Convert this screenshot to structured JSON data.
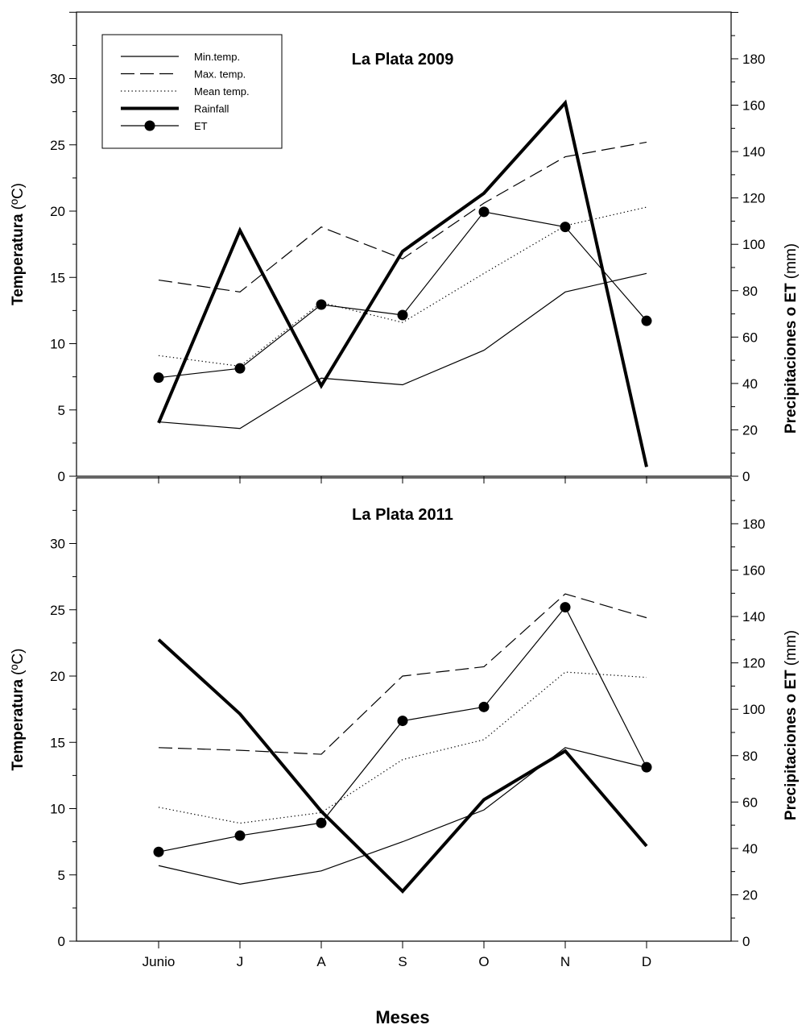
{
  "figure": {
    "xlabel": "Meses",
    "categories": [
      "Junio",
      "J",
      "A",
      "S",
      "O",
      "N",
      "D"
    ],
    "left_axis": {
      "label": "Temperatura",
      "unit": "(ºC)",
      "ylim": [
        0,
        35
      ],
      "ticks": [
        0,
        5,
        10,
        15,
        20,
        25,
        30
      ]
    },
    "right_axis": {
      "label": "Precipitaciones o ET",
      "unit": "(mm)",
      "ylim": [
        0,
        200
      ],
      "ticks": [
        0,
        20,
        40,
        60,
        80,
        100,
        120,
        140,
        160,
        180
      ]
    },
    "legend": {
      "placement": "top-left of upper panel",
      "entries": [
        {
          "label": "Min.temp.",
          "style": "thin-solid"
        },
        {
          "label": "Max. temp.",
          "style": "dashed"
        },
        {
          "label": "Mean temp.",
          "style": "dotted"
        },
        {
          "label": "Rainfall",
          "style": "thick-solid"
        },
        {
          "label": "ET",
          "style": "line-dot"
        }
      ]
    }
  },
  "chart_data": [
    {
      "type": "line",
      "title": "La Plata 2009",
      "categories": [
        "Junio",
        "J",
        "A",
        "S",
        "O",
        "N",
        "D"
      ],
      "xlabel": "Meses",
      "ylabel": "Temperatura (ºC)",
      "ylabel_right": "Precipitaciones o ET (mm)",
      "ylim": [
        0,
        35
      ],
      "ylim_right": [
        0,
        200
      ],
      "series": [
        {
          "name": "Min.temp.",
          "axis": "left",
          "style": "thin-solid",
          "values": [
            4.1,
            3.6,
            7.4,
            6.9,
            9.5,
            13.9,
            15.3
          ]
        },
        {
          "name": "Max. temp.",
          "axis": "left",
          "style": "dashed",
          "values": [
            14.8,
            13.9,
            18.8,
            16.4,
            20.6,
            24.1,
            25.2
          ]
        },
        {
          "name": "Mean temp.",
          "axis": "left",
          "style": "dotted",
          "values": [
            9.1,
            8.3,
            13.1,
            11.6,
            15.3,
            18.9,
            20.3
          ]
        },
        {
          "name": "Rainfall",
          "axis": "right",
          "style": "thick-solid",
          "values": [
            23,
            106,
            39,
            97,
            122,
            161,
            4
          ]
        },
        {
          "name": "ET",
          "axis": "right",
          "style": "line-dot",
          "values": [
            42.5,
            46.5,
            74,
            69.5,
            114,
            107.5,
            67
          ]
        }
      ]
    },
    {
      "type": "line",
      "title": "La Plata 2011",
      "categories": [
        "Junio",
        "J",
        "A",
        "S",
        "O",
        "N",
        "D"
      ],
      "xlabel": "Meses",
      "ylabel": "Temperatura (ºC)",
      "ylabel_right": "Precipitaciones o ET (mm)",
      "ylim": [
        0,
        35
      ],
      "ylim_right": [
        0,
        200
      ],
      "series": [
        {
          "name": "Min.temp.",
          "axis": "left",
          "style": "thin-solid",
          "values": [
            5.7,
            4.3,
            5.3,
            7.5,
            9.9,
            14.6,
            13.1
          ]
        },
        {
          "name": "Max. temp.",
          "axis": "left",
          "style": "dashed",
          "values": [
            14.6,
            14.4,
            14.1,
            20.0,
            20.7,
            26.2,
            24.4
          ]
        },
        {
          "name": "Mean temp.",
          "axis": "left",
          "style": "dotted",
          "values": [
            10.1,
            8.9,
            9.7,
            13.7,
            15.2,
            20.3,
            19.9
          ]
        },
        {
          "name": "Rainfall",
          "axis": "right",
          "style": "thick-solid",
          "values": [
            130,
            98,
            56,
            21.5,
            61,
            82,
            41
          ]
        },
        {
          "name": "ET",
          "axis": "right",
          "style": "line-dot",
          "values": [
            38.5,
            45.5,
            51,
            95,
            101,
            144,
            75
          ]
        }
      ]
    }
  ]
}
